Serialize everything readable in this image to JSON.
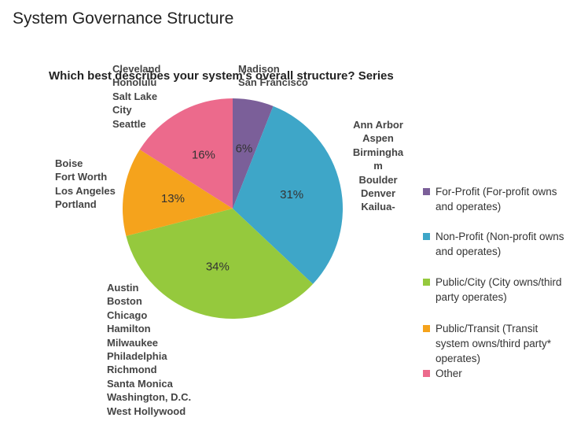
{
  "page_title": "System Governance Structure",
  "chart_data": {
    "type": "pie",
    "title": "Which best describes your system's overall structure? Series",
    "categories": [
      "For-Profit (For-profit owns and operates)",
      "Non-Profit (Non-profit owns and operates)",
      "Public/City (City owns/third party operates)",
      "Public/Transit (Transit system owns/third party* operates)",
      "Other"
    ],
    "values": [
      6,
      31,
      34,
      13,
      16
    ],
    "value_labels": [
      "6%",
      "31%",
      "34%",
      "13%",
      "16%"
    ],
    "colors": [
      "#7b5f99",
      "#3ea6c8",
      "#95c93d",
      "#f5a31c",
      "#ec6a8c"
    ],
    "legend": "right",
    "annotations": [
      {
        "lines": [
          "Cleveland",
          "Honolulu",
          "Salt Lake City",
          "Seattle"
        ]
      },
      {
        "lines": [
          "Madison",
          "San Francisco"
        ]
      },
      {
        "lines": [
          "Boise",
          "Fort Worth",
          "Los Angeles",
          "Portland"
        ]
      },
      {
        "lines": [
          "Austin",
          "Boston",
          "Chicago",
          "Hamilton",
          "Milwaukee",
          "Philadelphia",
          "Richmond",
          "Santa Monica",
          "Washington, D.C.",
          "West Hollywood"
        ]
      },
      {
        "lines": [
          "Ann Arbor",
          "Aspen",
          "Birmingham",
          "Boulder",
          "Denver",
          "Kailua-"
        ]
      }
    ]
  }
}
